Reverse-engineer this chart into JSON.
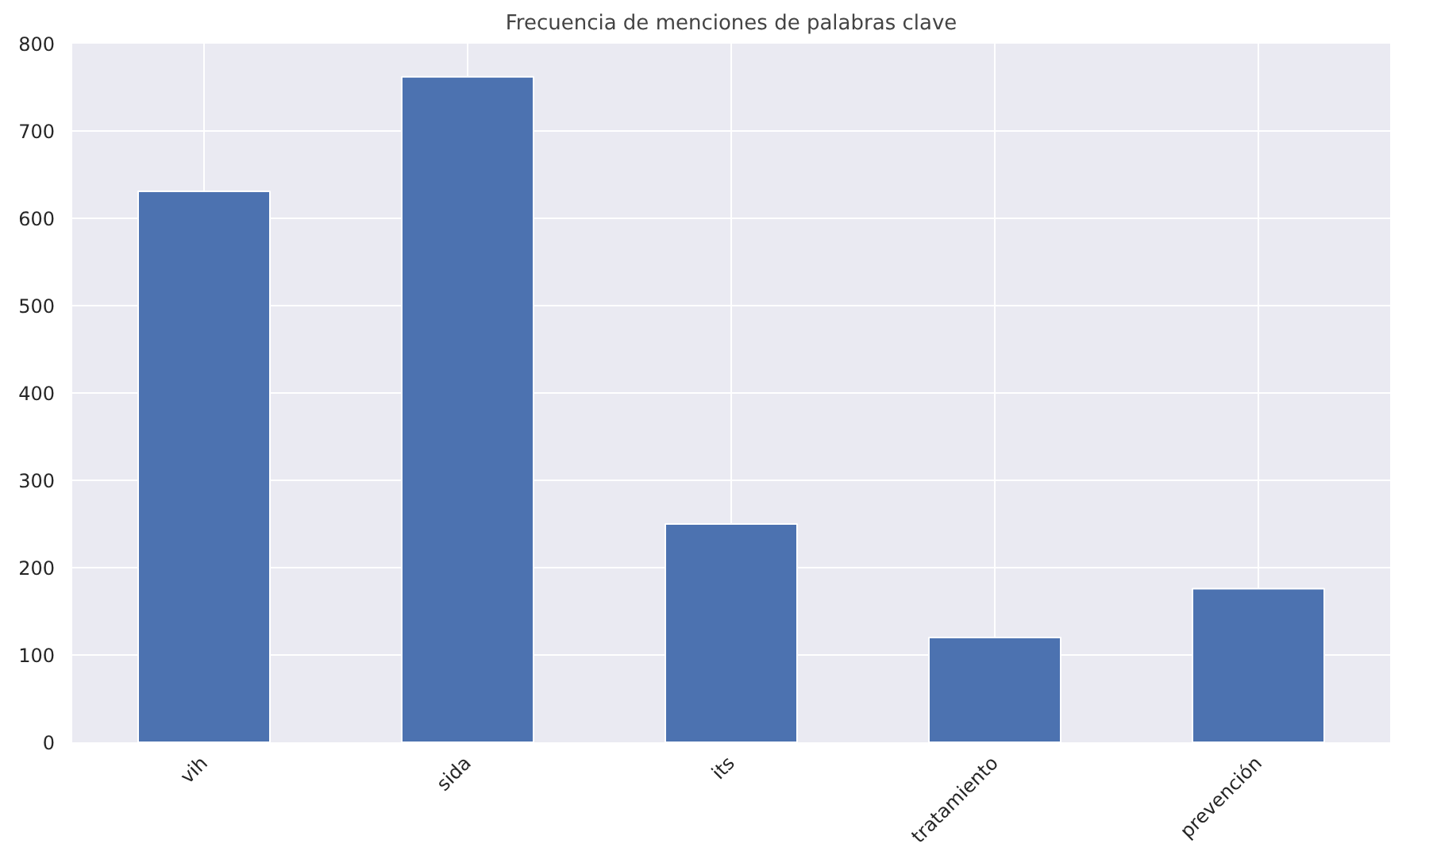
{
  "chart_data": {
    "type": "bar",
    "title": "Frecuencia de menciones de palabras clave",
    "categories": [
      "vih",
      "sida",
      "its",
      "tratamiento",
      "prevención"
    ],
    "values": [
      631,
      762,
      250,
      120,
      176
    ],
    "color": "#4c72b0",
    "ylim": [
      0,
      800
    ],
    "yticks": [
      0,
      100,
      200,
      300,
      400,
      500,
      600,
      700,
      800
    ],
    "grid": true
  }
}
